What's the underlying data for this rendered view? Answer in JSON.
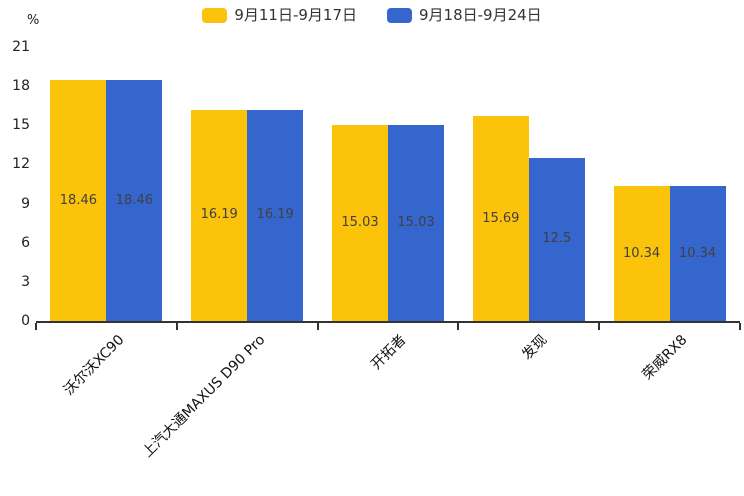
{
  "chart_data": {
    "type": "bar",
    "title": "",
    "categories": [
      "沃尔沃XC90",
      "上汽大通MAXUS D90 Pro",
      "开拓者",
      "发现",
      "荣威RX8"
    ],
    "series": [
      {
        "name": "9月11日-9月17日",
        "color": "#FCC30B",
        "values": [
          18.46,
          16.19,
          15.03,
          15.69,
          10.34
        ]
      },
      {
        "name": "9月18日-9月24日",
        "color": "#3566CD",
        "values": [
          18.46,
          16.19,
          15.03,
          12.5,
          10.34
        ]
      }
    ],
    "xlabel": "",
    "ylabel": "%",
    "ylim": [
      0,
      21
    ],
    "y_ticks": [
      0,
      3,
      6,
      9,
      12,
      15,
      18,
      21
    ],
    "grid": false,
    "legend_position": "top-center",
    "bar_value_labels": true,
    "x_label_rotation_deg": 45,
    "axis_color": "#333333",
    "value_label_color": "#404040"
  }
}
